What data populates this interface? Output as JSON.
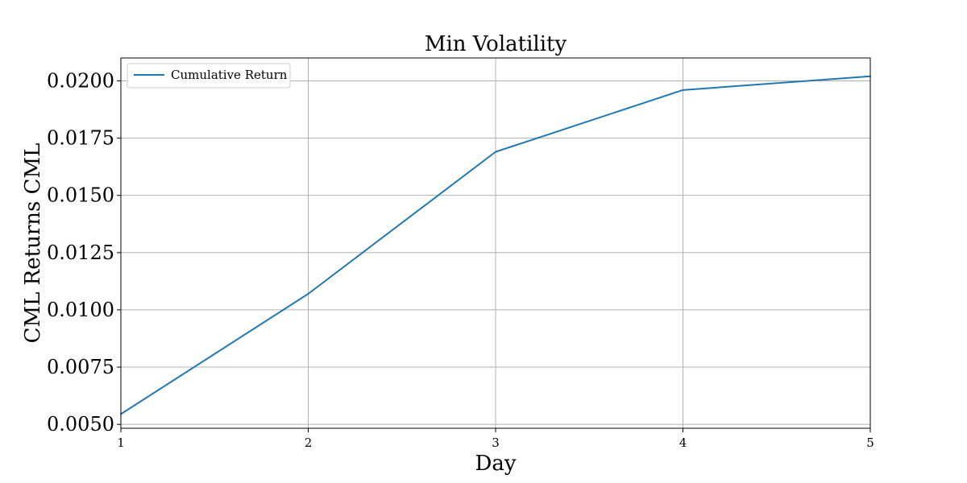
{
  "chart_data": {
    "type": "line",
    "title": "Min Volatility",
    "xlabel": "Day",
    "ylabel": "CML Returns CML",
    "x": [
      1,
      2,
      3,
      4,
      5
    ],
    "xticks": [
      "1",
      "2",
      "3",
      "4",
      "5"
    ],
    "yticks": [
      "0.0050",
      "0.0075",
      "0.0100",
      "0.0125",
      "0.0150",
      "0.0175",
      "0.0200"
    ],
    "ytick_values": [
      0.005,
      0.0075,
      0.01,
      0.0125,
      0.015,
      0.0175,
      0.02
    ],
    "xlim": [
      1,
      5
    ],
    "ylim": [
      0.00483,
      0.021
    ],
    "grid": true,
    "legend_position": "top-left",
    "series": [
      {
        "name": "Cumulative Return",
        "color": "#1f77b4",
        "values": [
          0.00545,
          0.0107,
          0.0169,
          0.0196,
          0.0202
        ]
      }
    ]
  }
}
